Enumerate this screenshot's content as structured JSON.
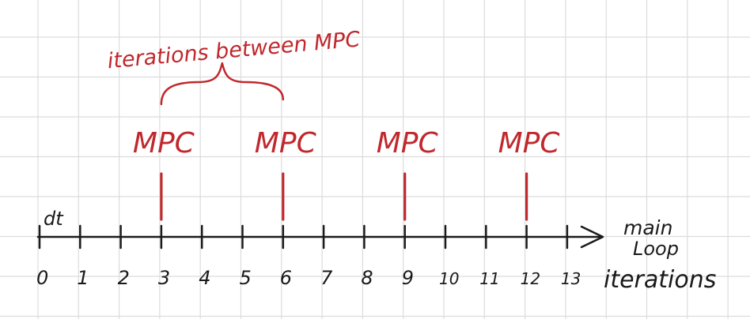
{
  "colors": {
    "grid": "#dcdcdc",
    "axis": "#1a1a1a",
    "accent": "#c0282d",
    "background": "#ffffff"
  },
  "annotations": {
    "top_label": "iterations between MPC",
    "step_label": "dt",
    "axis_label_line1": "main",
    "axis_label_line2": "Loop",
    "axis_label_line3": "iterations"
  },
  "ticks": [
    "0",
    "1",
    "2",
    "3",
    "4",
    "5",
    "6",
    "7",
    "8",
    "9",
    "10",
    "11",
    "12",
    "13"
  ],
  "mpc_markers": [
    {
      "at": 3,
      "label": "MPC"
    },
    {
      "at": 6,
      "label": "MPC"
    },
    {
      "at": 9,
      "label": "MPC"
    },
    {
      "at": 12,
      "label": "MPC"
    }
  ],
  "brace": {
    "from": 3,
    "to": 6
  }
}
